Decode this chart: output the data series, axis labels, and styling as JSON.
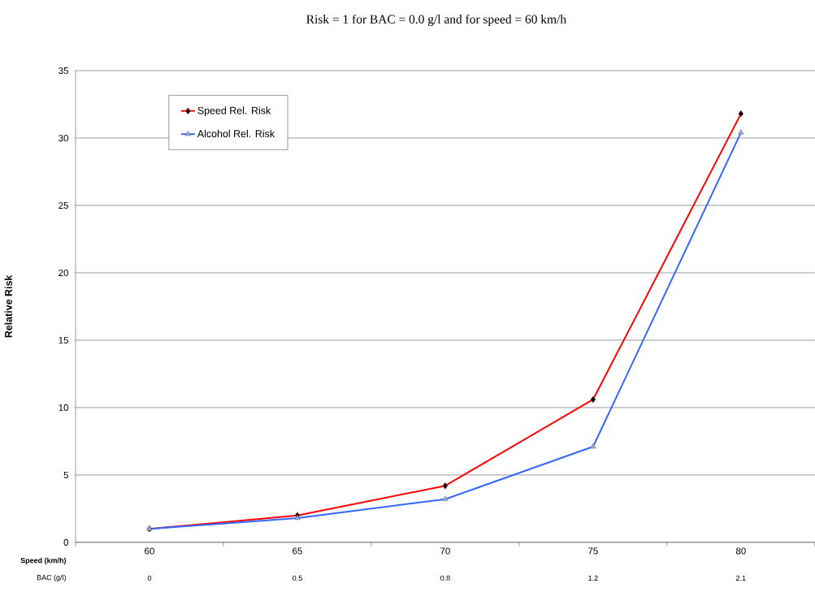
{
  "chart_data": {
    "type": "line",
    "title": "Risk = 1 for BAC = 0.0 g/l and for speed = 60 km/h",
    "xlabel": "Speed (km/h)",
    "ylabel": "Relative Risk",
    "categories": [
      "60",
      "65",
      "70",
      "75",
      "80"
    ],
    "series": [
      {
        "name": "Speed Rel. Risk",
        "color": "#ff0000",
        "marker": "diamond",
        "values": [
          1,
          2,
          4.2,
          10.6,
          31.8
        ]
      },
      {
        "name": "Alcohol Rel. Risk",
        "color": "#3366ff",
        "marker": "triangle",
        "values": [
          1,
          1.8,
          3.2,
          7.1,
          30.4
        ]
      }
    ],
    "annotations": [
      "BAC (g/l)",
      "0",
      "0.5",
      "0.8",
      "1.2",
      "2.1"
    ],
    "ylim": [
      0,
      35
    ],
    "yticks": [
      0,
      5,
      10,
      15,
      20,
      25,
      30,
      35
    ],
    "grid": "y",
    "legend": "top left",
    "line_style": "solid"
  }
}
